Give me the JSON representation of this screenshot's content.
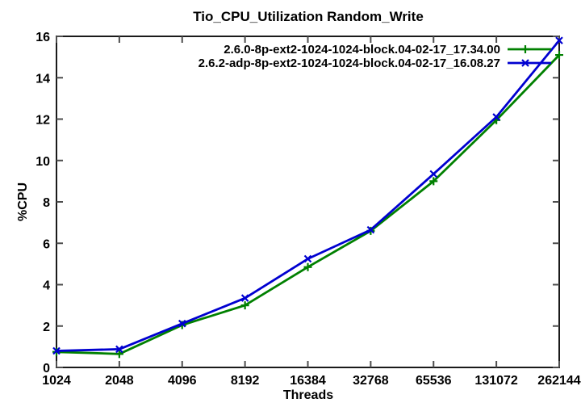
{
  "chart_data": {
    "type": "line",
    "title": "Tio_CPU_Utilization Random_Write",
    "xlabel": "Threads",
    "ylabel": "%CPU",
    "x_scale": "log2",
    "grid": false,
    "legend_position": "top-right-inside",
    "xlim": [
      1024,
      262144
    ],
    "ylim": [
      0,
      16
    ],
    "x_ticks": [
      1024,
      2048,
      4096,
      8192,
      16384,
      32768,
      65536,
      131072,
      262144
    ],
    "y_ticks": [
      0,
      2,
      4,
      6,
      8,
      10,
      12,
      14,
      16
    ],
    "x": [
      1024,
      2048,
      4096,
      8192,
      16384,
      32768,
      65536,
      131072,
      262144
    ],
    "series": [
      {
        "name": "2.6.0-8p-ext2-1024-1024-block.04-02-17_17.34.00",
        "color": "#008000",
        "marker": "plus",
        "values": [
          0.75,
          0.65,
          2.05,
          3.0,
          4.85,
          6.6,
          9.0,
          11.95,
          15.1
        ]
      },
      {
        "name": "2.6.2-adp-8p-ext2-1024-1024-block.04-02-17_16.08.27",
        "color": "#0000d0",
        "marker": "x",
        "values": [
          0.8,
          0.88,
          2.12,
          3.35,
          5.25,
          6.65,
          9.35,
          12.1,
          15.8
        ]
      }
    ]
  }
}
